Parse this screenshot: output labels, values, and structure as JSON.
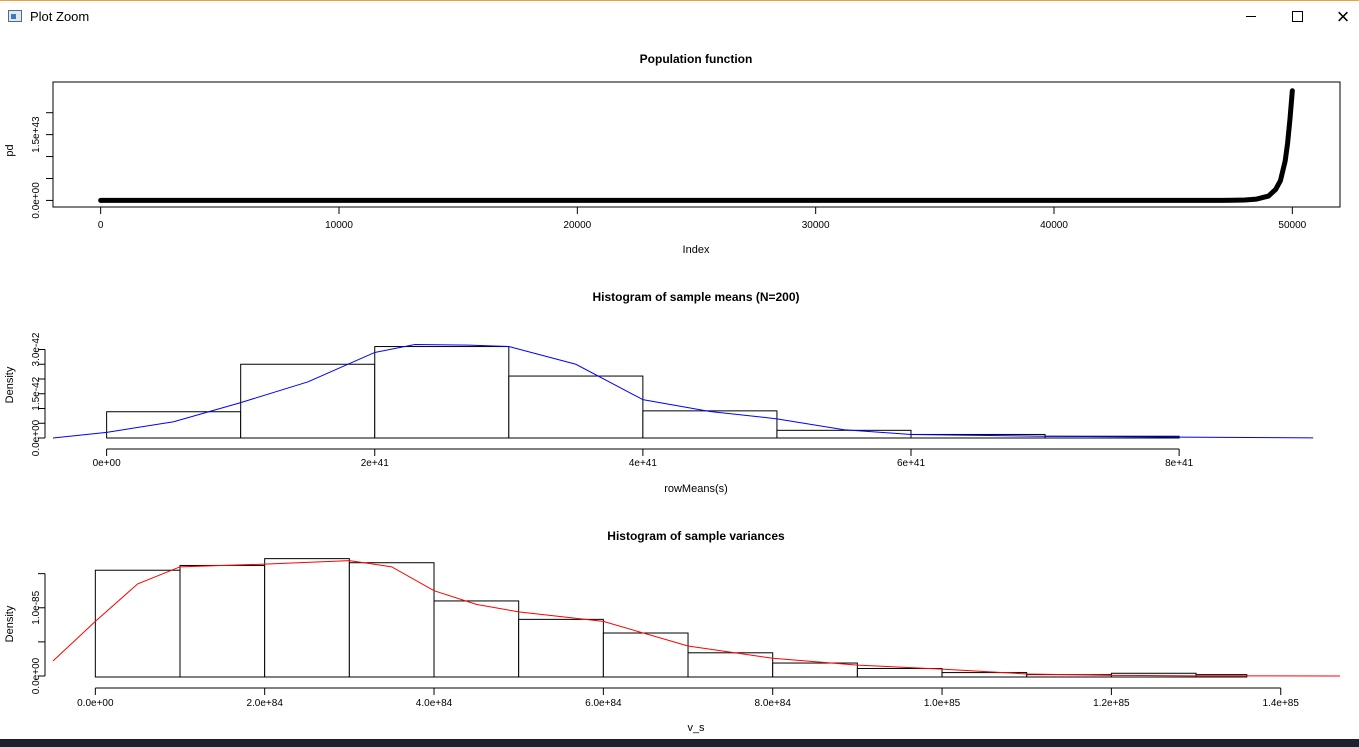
{
  "window": {
    "title": "Plot Zoom",
    "icon": "plot-window-icon",
    "minimize_glyph": "minimize-icon",
    "maximize_glyph": "maximize-icon",
    "close_glyph": "×"
  },
  "chart_data": [
    {
      "type": "scatter",
      "title": "Population function",
      "xlabel": "Index",
      "ylabel": "pd",
      "xlim": [
        -2000,
        52000
      ],
      "ylim": [
        -1.5e+42,
        2.7e+43
      ],
      "xticks": [
        0,
        10000,
        20000,
        30000,
        40000,
        50000
      ],
      "xtick_labels": [
        "0",
        "10000",
        "20000",
        "30000",
        "40000",
        "50000"
      ],
      "yticks": [
        0,
        1.5e+43
      ],
      "ytick_labels": [
        "0.0e+00",
        "1.5e+43"
      ],
      "points_description": "values near 0 for index 0-47000, then exponential rise to ~2.5e43 at 50000",
      "curve": [
        [
          0,
          0
        ],
        [
          46000,
          0
        ],
        [
          47000,
          1e+40
        ],
        [
          47500,
          3e+40
        ],
        [
          48000,
          1e+41
        ],
        [
          48500,
          3e+41
        ],
        [
          49000,
          1e+42
        ],
        [
          49300,
          2.5e+42
        ],
        [
          49500,
          4.5e+42
        ],
        [
          49700,
          9e+42
        ],
        [
          49800,
          1.3e+43
        ],
        [
          49900,
          1.85e+43
        ],
        [
          50000,
          2.5e+43
        ]
      ]
    },
    {
      "type": "bar",
      "title": "Histogram of sample means (N=200)",
      "xlabel": "rowMeans(s)",
      "ylabel": "Density",
      "xlim": [
        -4e+40,
        9.2e+41
      ],
      "ylim": [
        0,
        4e-42
      ],
      "xticks": [
        0,
        2e+41,
        4e+41,
        6e+41,
        8e+41
      ],
      "xtick_labels": [
        "0e+00",
        "2e+41",
        "4e+41",
        "6e+41",
        "8e+41"
      ],
      "yticks": [
        0,
        1.5e-42,
        3e-42
      ],
      "ytick_labels": [
        "0.0e+00",
        "1.5e-42",
        "3.0e-42"
      ],
      "bin_edges": [
        0,
        1e+41,
        2e+41,
        3e+41,
        4e+41,
        5e+41,
        6e+41,
        7e+41,
        8e+41
      ],
      "values": [
        8.9e-43,
        2.5e-42,
        3.1e-42,
        2.1e-42,
        9.2e-43,
        2.6e-43,
        1.2e-43,
        6e-44
      ],
      "density_curve_color": "#0000ff",
      "density_curve": [
        [
          -4e+40,
          0
        ],
        [
          0,
          1.9e-43
        ],
        [
          5e+40,
          5.5e-43
        ],
        [
          1e+41,
          1.2e-42
        ],
        [
          1.5e+41,
          1.9e-42
        ],
        [
          2e+41,
          2.9e-42
        ],
        [
          2.3e+41,
          3.17e-42
        ],
        [
          2.7e+41,
          3.15e-42
        ],
        [
          3e+41,
          3.1e-42
        ],
        [
          3.5e+41,
          2.5e-42
        ],
        [
          4e+41,
          1.3e-42
        ],
        [
          4.5e+41,
          9e-43
        ],
        [
          5e+41,
          6.5e-43
        ],
        [
          5.5e+41,
          2.8e-43
        ],
        [
          6e+41,
          1.2e-43
        ],
        [
          7e+41,
          6e-44
        ],
        [
          8e+41,
          3e-44
        ],
        [
          9e+41,
          5e-45
        ]
      ]
    },
    {
      "type": "bar",
      "title": "Histogram of sample variances",
      "xlabel": "v_s",
      "ylabel": "Density",
      "xlim": [
        -5e+83,
        1.47e+85
      ],
      "ylim": [
        0,
        1.7e-85
      ],
      "xticks": [
        0,
        2e+84,
        4e+84,
        6e+84,
        8e+84,
        1e+85,
        1.2e+85,
        1.4e+85
      ],
      "xtick_labels": [
        "0.0e+00",
        "2.0e+84",
        "4.0e+84",
        "6.0e+84",
        "8.0e+84",
        "1.0e+85",
        "1.2e+85",
        "1.4e+85"
      ],
      "yticks": [
        0,
        1e-85
      ],
      "ytick_labels": [
        "0.0e+00",
        "1.0e-85"
      ],
      "bin_edges": [
        0,
        1e+84,
        2e+84,
        3e+84,
        4e+84,
        5e+84,
        6e+84,
        7e+84,
        8e+84,
        9e+84,
        1e+85,
        1.1e+85,
        1.2e+85,
        1.3e+85,
        1.36e+85
      ],
      "values": [
        1.55e-85,
        1.62e-85,
        1.72e-85,
        1.66e-85,
        1.1e-85,
        8.3e-86,
        6.3e-86,
        3.4e-86,
        1.9e-86,
        1.1e-86,
        5e-87,
        2e-87,
        4e-87,
        2e-87
      ],
      "density_curve_color": "#ff0000",
      "density_curve": [
        [
          -5e+83,
          2.2e-86
        ],
        [
          0,
          8e-86
        ],
        [
          5e+83,
          1.35e-85
        ],
        [
          1e+84,
          1.6e-85
        ],
        [
          2e+84,
          1.64e-85
        ],
        [
          3e+84,
          1.69e-85
        ],
        [
          3.5e+84,
          1.6e-85
        ],
        [
          4e+84,
          1.25e-85
        ],
        [
          4.5e+84,
          1.05e-85
        ],
        [
          5e+84,
          9.4e-86
        ],
        [
          5.5e+84,
          8.7e-86
        ],
        [
          6e+84,
          8e-86
        ],
        [
          7e+84,
          4.4e-86
        ],
        [
          8e+84,
          2.6e-86
        ],
        [
          9e+84,
          1.6e-86
        ],
        [
          1e+85,
          1e-86
        ],
        [
          1.1e+85,
          3e-87
        ],
        [
          1.2e+85,
          1e-87
        ],
        [
          1.3e+85,
          2e-88
        ],
        [
          1.47e+85,
          0
        ]
      ]
    }
  ]
}
